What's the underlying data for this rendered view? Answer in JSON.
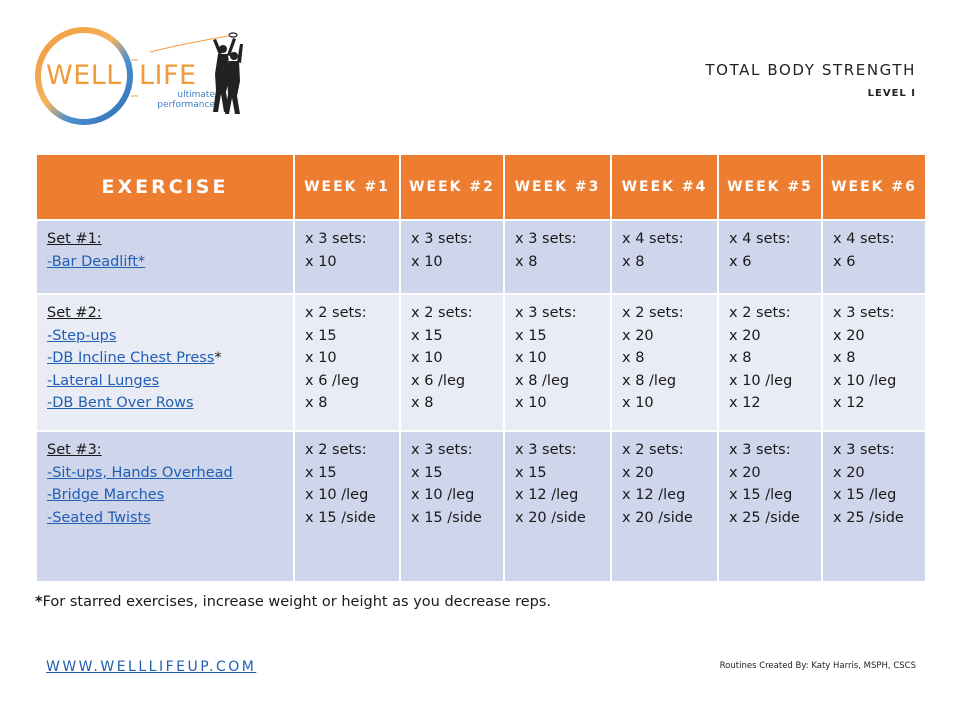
{
  "brand": {
    "word1": "WELL",
    "word2": "LIFE",
    "tagline1": "ultimate",
    "tagline2": "performance",
    "colors": {
      "orange": "#f39a3c",
      "blue": "#3d7fc1"
    }
  },
  "title": "TOTAL BODY STRENGTH",
  "level": "LEVEL I",
  "table": {
    "headers": [
      "EXERCISE",
      "WEEK #1",
      "WEEK #2",
      "WEEK #3",
      "WEEK #4",
      "WEEK #5",
      "WEEK #6"
    ],
    "header_color": "#ed7d31",
    "rows": [
      {
        "set": "Set #1:",
        "exercises": [
          {
            "name": "-Bar Deadlift*",
            "star": ""
          }
        ],
        "weeks": [
          {
            "sets": "x 3 sets:",
            "reps": [
              "x 10"
            ]
          },
          {
            "sets": "x 3 sets:",
            "reps": [
              "x 10"
            ]
          },
          {
            "sets": "x 3 sets:",
            "reps": [
              "x 8"
            ]
          },
          {
            "sets": "x 4 sets:",
            "reps": [
              "x 8"
            ]
          },
          {
            "sets": "x 4 sets:",
            "reps": [
              "x 6"
            ]
          },
          {
            "sets": "x 4 sets:",
            "reps": [
              "x 6"
            ]
          }
        ]
      },
      {
        "set": "Set #2:",
        "exercises": [
          {
            "name": "-Step-ups",
            "star": ""
          },
          {
            "name": "-DB Incline Chest Press",
            "star": "*"
          },
          {
            "name": "-Lateral Lunges",
            "star": ""
          },
          {
            "name": "-DB Bent Over Rows",
            "star": ""
          }
        ],
        "weeks": [
          {
            "sets": "x 2 sets:",
            "reps": [
              "x 15",
              "x 10",
              "x 6 /leg",
              "x 8"
            ]
          },
          {
            "sets": "x 2 sets:",
            "reps": [
              "x 15",
              "x 10",
              "x 6 /leg",
              "x 8"
            ]
          },
          {
            "sets": "x 3 sets:",
            "reps": [
              "x 15",
              "x 10",
              "x 8 /leg",
              "x 10"
            ]
          },
          {
            "sets": "x 2 sets:",
            "reps": [
              "x 20",
              "x 8",
              "x 8 /leg",
              "x 10"
            ]
          },
          {
            "sets": "x 2 sets:",
            "reps": [
              "x 20",
              "x 8",
              "x 10 /leg",
              "x 12"
            ]
          },
          {
            "sets": "x 3 sets:",
            "reps": [
              "x 20",
              "x 8",
              "x 10 /leg",
              "x 12"
            ]
          }
        ]
      },
      {
        "set": "Set #3:",
        "exercises": [
          {
            "name": "-Sit-ups, Hands Overhead",
            "star": ""
          },
          {
            "name": "-Bridge Marches",
            "star": ""
          },
          {
            "name": "-Seated Twists",
            "star": ""
          }
        ],
        "weeks": [
          {
            "sets": "x 2 sets:",
            "reps": [
              "x 15",
              "x 10 /leg",
              "x 15 /side"
            ]
          },
          {
            "sets": "x 3 sets:",
            "reps": [
              "x 15",
              "x 10 /leg",
              "x 15 /side"
            ]
          },
          {
            "sets": "x 3 sets:",
            "reps": [
              "x 15",
              "x 12 /leg",
              "x 20 /side"
            ]
          },
          {
            "sets": "x 2 sets:",
            "reps": [
              "x 20",
              "x 12 /leg",
              "x 20 /side"
            ]
          },
          {
            "sets": "x 3 sets:",
            "reps": [
              "x 20",
              "x 15 /leg",
              "x 25 /side"
            ]
          },
          {
            "sets": "x 3 sets:",
            "reps": [
              "x 20",
              "x 15 /leg",
              "x 25 /side"
            ]
          }
        ]
      }
    ]
  },
  "footnote": {
    "star": "*",
    "text": "For starred exercises, increase weight or height as you decrease reps."
  },
  "website": "WWW.WELLLIFEUP.COM",
  "credit": "Routines Created By: Katy Harris, MSPH, CSCS"
}
